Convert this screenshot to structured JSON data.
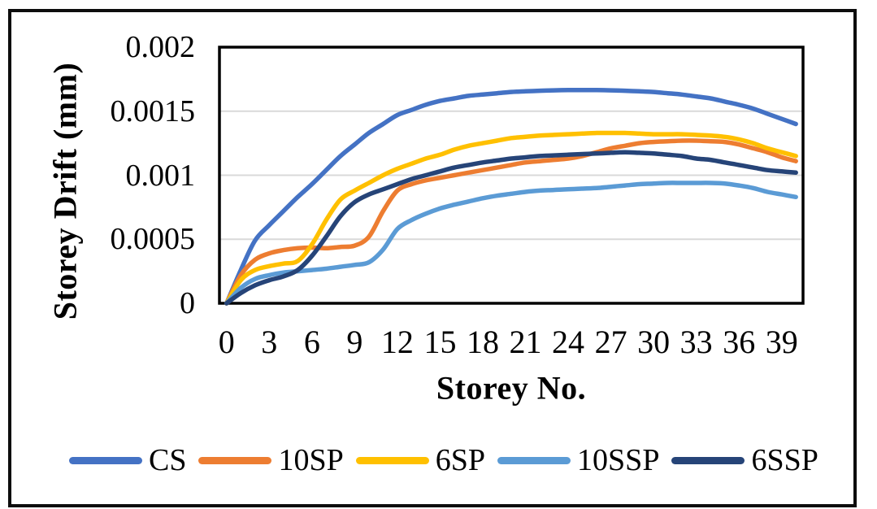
{
  "figure": {
    "background": "#ffffff",
    "frame_border_color": "#0d0d0d",
    "plot_border_color": "#000000",
    "gridline_color": "#d9d9d9"
  },
  "chart_data": {
    "type": "line",
    "title": "",
    "xlabel": "Storey No.",
    "ylabel": "Storey Drift (mm)",
    "ylim": [
      0,
      0.002
    ],
    "grid": "horizontal",
    "legend_position": "bottom",
    "gridline_values": [
      0.0005,
      0.001,
      0.0015
    ],
    "y_ticks": [
      {
        "value": 0.002,
        "label": "0.002"
      },
      {
        "value": 0.0015,
        "label": "0.0015"
      },
      {
        "value": 0.001,
        "label": "0.001"
      },
      {
        "value": 0.0005,
        "label": "0.0005"
      },
      {
        "value": 0,
        "label": "0"
      }
    ],
    "x_ticks": [
      "0",
      "3",
      "6",
      "9",
      "12",
      "15",
      "18",
      "21",
      "24",
      "27",
      "30",
      "33",
      "36",
      "39"
    ],
    "x_categories_count": 41,
    "series": [
      {
        "name": "CS",
        "color": "#4472C4",
        "values": [
          0,
          0.00026,
          0.00049,
          0.00061,
          0.00072,
          0.00083,
          0.00093,
          0.00104,
          0.00115,
          0.00124,
          0.00133,
          0.0014,
          0.00147,
          0.00151,
          0.00155,
          0.00158,
          0.0016,
          0.00162,
          0.00163,
          0.00164,
          0.00165,
          0.001655,
          0.00166,
          0.001663,
          0.001665,
          0.001665,
          0.001665,
          0.001663,
          0.00166,
          0.001655,
          0.00165,
          0.00164,
          0.00163,
          0.001615,
          0.0016,
          0.001575,
          0.00155,
          0.00152,
          0.00148,
          0.00144,
          0.0014
        ]
      },
      {
        "name": "10SP",
        "color": "#ED7D31",
        "values": [
          0,
          0.00022,
          0.00034,
          0.00039,
          0.000415,
          0.00043,
          0.000435,
          0.00043,
          0.00044,
          0.00045,
          0.00052,
          0.00072,
          0.00088,
          0.00093,
          0.00096,
          0.00098,
          0.001,
          0.00102,
          0.00104,
          0.00106,
          0.00108,
          0.0011,
          0.00111,
          0.00112,
          0.00113,
          0.00115,
          0.00118,
          0.00121,
          0.00123,
          0.00125,
          0.00126,
          0.001265,
          0.00127,
          0.00127,
          0.001265,
          0.00126,
          0.00124,
          0.00121,
          0.00118,
          0.00114,
          0.00111
        ]
      },
      {
        "name": "6SP",
        "color": "#FFC000",
        "values": [
          0,
          0.00018,
          0.00026,
          0.00029,
          0.00031,
          0.00033,
          0.00046,
          0.00065,
          0.00081,
          0.00088,
          0.00094,
          0.001,
          0.00105,
          0.00109,
          0.00113,
          0.00116,
          0.0012,
          0.00123,
          0.00125,
          0.00127,
          0.00129,
          0.0013,
          0.00131,
          0.001315,
          0.00132,
          0.001325,
          0.00133,
          0.00133,
          0.00133,
          0.001325,
          0.00132,
          0.00132,
          0.00132,
          0.001315,
          0.00131,
          0.0013,
          0.00128,
          0.00125,
          0.00121,
          0.00118,
          0.00115
        ]
      },
      {
        "name": "10SSP",
        "color": "#5B9BD5",
        "values": [
          0,
          0.00012,
          0.00019,
          0.00022,
          0.00024,
          0.00025,
          0.00026,
          0.00027,
          0.000285,
          0.0003,
          0.00032,
          0.00042,
          0.00058,
          0.00065,
          0.0007,
          0.00074,
          0.00077,
          0.000795,
          0.00082,
          0.00084,
          0.000855,
          0.00087,
          0.00088,
          0.000885,
          0.00089,
          0.000895,
          0.0009,
          0.00091,
          0.00092,
          0.00093,
          0.000935,
          0.00094,
          0.00094,
          0.00094,
          0.00094,
          0.000935,
          0.00092,
          0.0009,
          0.00087,
          0.00085,
          0.00083
        ]
      },
      {
        "name": "6SSP",
        "color": "#264478",
        "values": [
          0,
          8e-05,
          0.00014,
          0.00018,
          0.00021,
          0.00026,
          0.00037,
          0.00052,
          0.00068,
          0.00079,
          0.00085,
          0.00089,
          0.00093,
          0.00097,
          0.001,
          0.00103,
          0.00106,
          0.00108,
          0.0011,
          0.001115,
          0.00113,
          0.00114,
          0.00115,
          0.001155,
          0.00116,
          0.001165,
          0.00117,
          0.001175,
          0.00118,
          0.001175,
          0.00117,
          0.00116,
          0.00115,
          0.00113,
          0.00112,
          0.0011,
          0.00108,
          0.00106,
          0.00104,
          0.00103,
          0.00102
        ]
      }
    ]
  }
}
